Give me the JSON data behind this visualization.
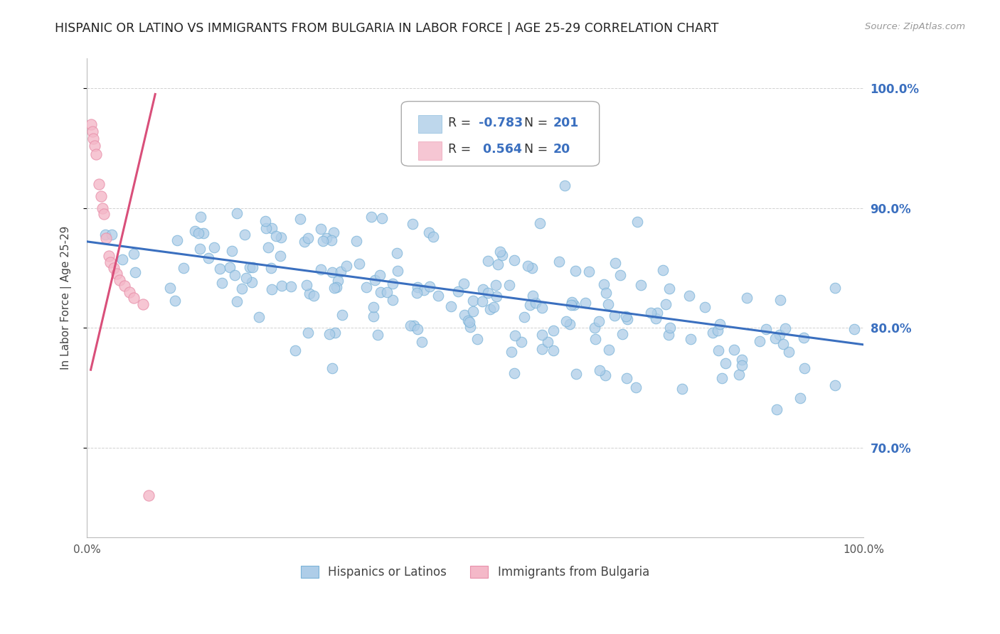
{
  "title": "HISPANIC OR LATINO VS IMMIGRANTS FROM BULGARIA IN LABOR FORCE | AGE 25-29 CORRELATION CHART",
  "source": "Source: ZipAtlas.com",
  "ylabel": "In Labor Force | Age 25-29",
  "blue_R": -0.783,
  "blue_N": 201,
  "pink_R": 0.564,
  "pink_N": 20,
  "blue_color": "#aecde8",
  "pink_color": "#f4b8c8",
  "blue_edge_color": "#7ab3d8",
  "pink_edge_color": "#e890aa",
  "blue_line_color": "#3a6fbf",
  "pink_line_color": "#d94f7a",
  "xlim": [
    0.0,
    1.0
  ],
  "ylim": [
    0.625,
    1.025
  ],
  "yticks": [
    0.7,
    0.8,
    0.9,
    1.0
  ],
  "right_ytick_labels": [
    "70.0%",
    "80.0%",
    "90.0%",
    "100.0%"
  ],
  "background_color": "#ffffff",
  "grid_color": "#cccccc",
  "title_fontsize": 12.5,
  "axis_label_fontsize": 11,
  "tick_fontsize": 11,
  "legend_label1": "Hispanics or Latinos",
  "legend_label2": "Immigrants from Bulgaria",
  "blue_trend_y0": 0.872,
  "blue_trend_y1": 0.786,
  "pink_trend_x0": 0.005,
  "pink_trend_x1": 0.088,
  "pink_trend_y0": 0.765,
  "pink_trend_y1": 0.995,
  "blue_r_color": "#3a6fbf",
  "pink_r_color": "#d94f7a",
  "legend_r_label_color": "#333333",
  "legend_n_value_color": "#3a6fbf"
}
